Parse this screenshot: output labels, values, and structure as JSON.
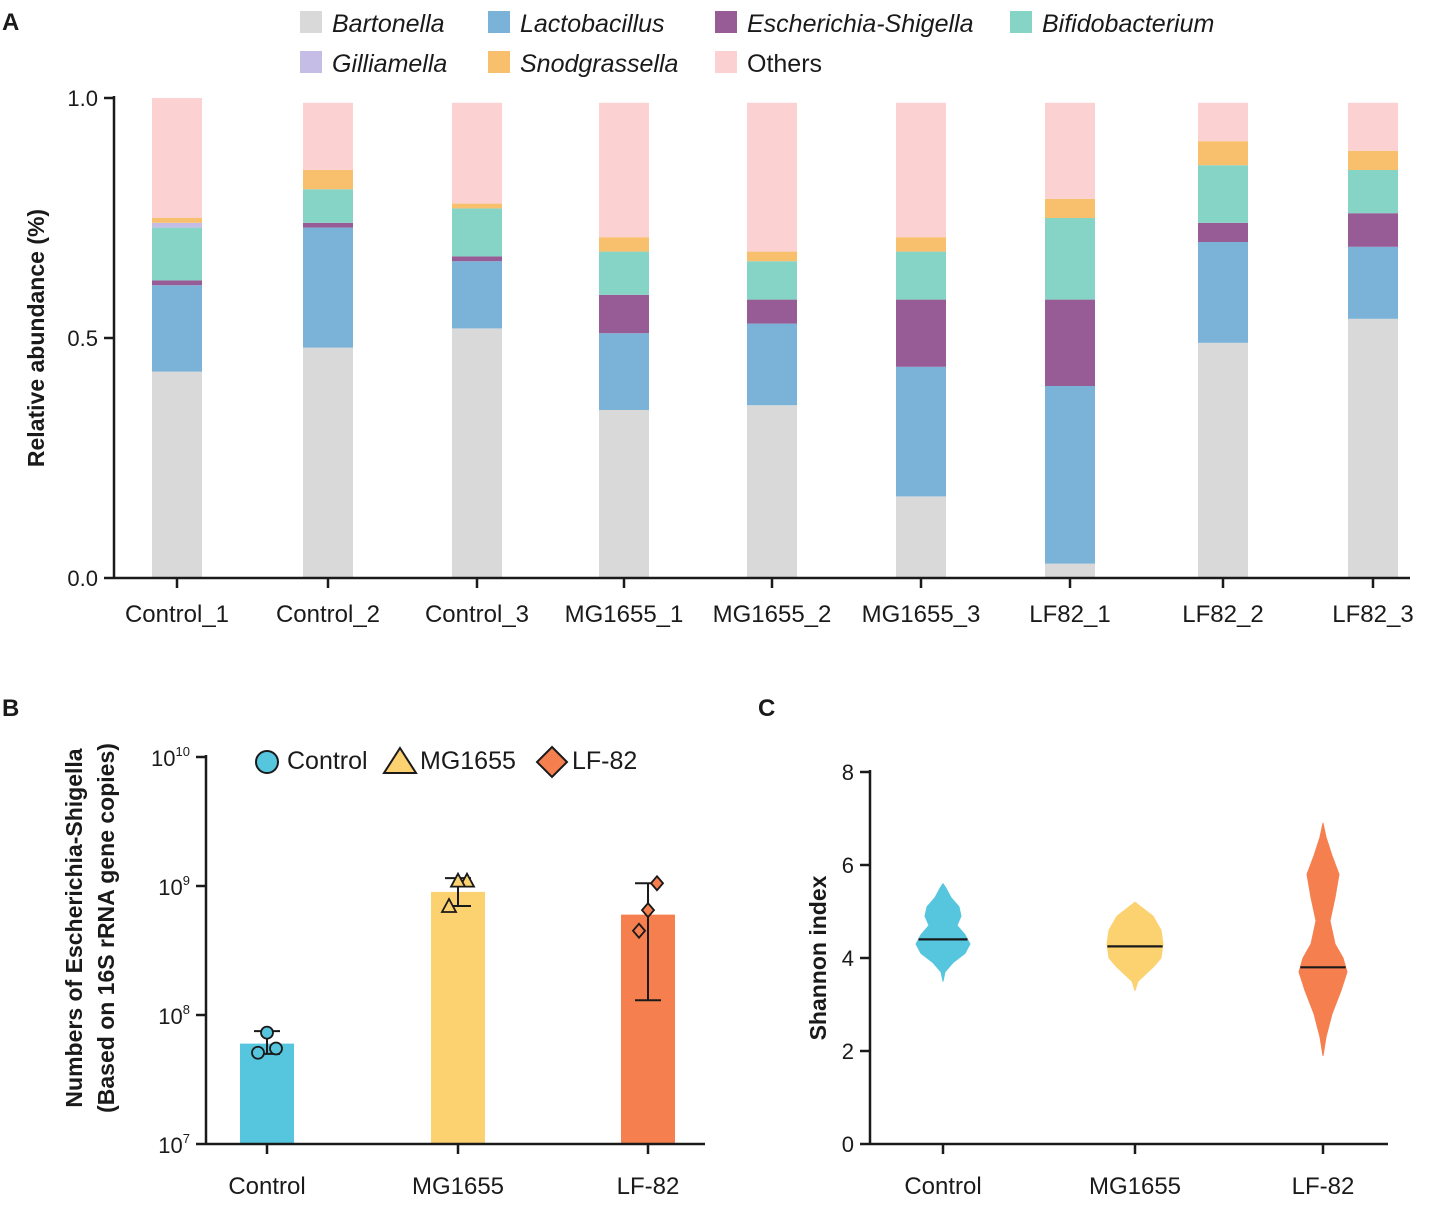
{
  "panels": {
    "a": "A",
    "b": "B",
    "c": "C"
  },
  "chart_data": [
    {
      "panel": "A",
      "type": "bar",
      "stacked": true,
      "ylabel": "Relative abundance (%)",
      "ylim": [
        0,
        1
      ],
      "yticks": [
        "0.0",
        "0.5",
        "1.0"
      ],
      "categories": [
        "Control_1",
        "Control_2",
        "Control_3",
        "MG1655_1",
        "MG1655_2",
        "MG1655_3",
        "LF82_1",
        "LF82_2",
        "LF82_3"
      ],
      "series": [
        {
          "name": "Bartonella",
          "color": "#d9d9d9",
          "italic": true,
          "values": [
            0.43,
            0.48,
            0.52,
            0.35,
            0.36,
            0.17,
            0.03,
            0.49,
            0.54
          ]
        },
        {
          "name": "Lactobacillus",
          "color": "#7ab2d8",
          "italic": true,
          "values": [
            0.18,
            0.25,
            0.14,
            0.16,
            0.17,
            0.27,
            0.37,
            0.21,
            0.15
          ]
        },
        {
          "name": "Escherichia-Shigella",
          "color": "#975c95",
          "italic": true,
          "values": [
            0.01,
            0.01,
            0.01,
            0.08,
            0.05,
            0.14,
            0.18,
            0.04,
            0.07
          ]
        },
        {
          "name": "Bifidobacterium",
          "color": "#86d4c5",
          "italic": true,
          "values": [
            0.11,
            0.07,
            0.1,
            0.09,
            0.08,
            0.1,
            0.17,
            0.12,
            0.09
          ]
        },
        {
          "name": "Gilliamella",
          "color": "#c6bde6",
          "italic": true,
          "values": [
            0.01,
            0.0,
            0.0,
            0.0,
            0.0,
            0.0,
            0.0,
            0.0,
            0.0
          ]
        },
        {
          "name": "Snodgrassella",
          "color": "#f8bf6c",
          "italic": true,
          "values": [
            0.01,
            0.04,
            0.01,
            0.03,
            0.02,
            0.03,
            0.04,
            0.05,
            0.04
          ]
        },
        {
          "name": "Others",
          "color": "#fbd1d2",
          "italic": false,
          "values": [
            0.25,
            0.14,
            0.21,
            0.28,
            0.31,
            0.28,
            0.2,
            0.08,
            0.1
          ]
        }
      ]
    },
    {
      "panel": "B",
      "type": "bar",
      "yscale": "log",
      "ylabel_line1": "Numbers of Escherichia-Shigella",
      "ylabel_line2": "(Based on 16S rRNA gene copies)",
      "ylim": [
        10000000,
        10000000000
      ],
      "yticks": [
        {
          "base": "10",
          "exp": "7"
        },
        {
          "base": "10",
          "exp": "8"
        },
        {
          "base": "10",
          "exp": "9"
        },
        {
          "base": "10",
          "exp": "10"
        }
      ],
      "categories": [
        "Control",
        "MG1655",
        "LF-82"
      ],
      "values": [
        60000000,
        900000000,
        600000000
      ],
      "error_low": [
        50000000,
        700000000,
        130000000
      ],
      "error_high": [
        75000000,
        1150000000,
        1050000000
      ],
      "points": [
        [
          51000000,
          55000000,
          73000000
        ],
        [
          700000000,
          1100000000,
          1100000000
        ],
        [
          450000000,
          1050000000,
          650000000
        ]
      ],
      "colors": [
        "#56c6df",
        "#fcd271",
        "#f67f4f"
      ],
      "markers": [
        "circle",
        "triangle",
        "diamond"
      ],
      "legend": [
        "Control",
        "MG1655",
        "LF-82"
      ]
    },
    {
      "panel": "C",
      "type": "violin",
      "ylabel": "Shannon index",
      "ylim": [
        0,
        8
      ],
      "yticks": [
        "0",
        "2",
        "4",
        "6",
        "8"
      ],
      "categories": [
        "Control",
        "MG1655",
        "LF-82"
      ],
      "medians": [
        4.4,
        4.25,
        3.8
      ],
      "ranges": [
        [
          3.5,
          5.6
        ],
        [
          3.3,
          5.2
        ],
        [
          1.9,
          6.9
        ]
      ],
      "colors": [
        "#56c6df",
        "#fcd271",
        "#f67f4f"
      ]
    }
  ]
}
